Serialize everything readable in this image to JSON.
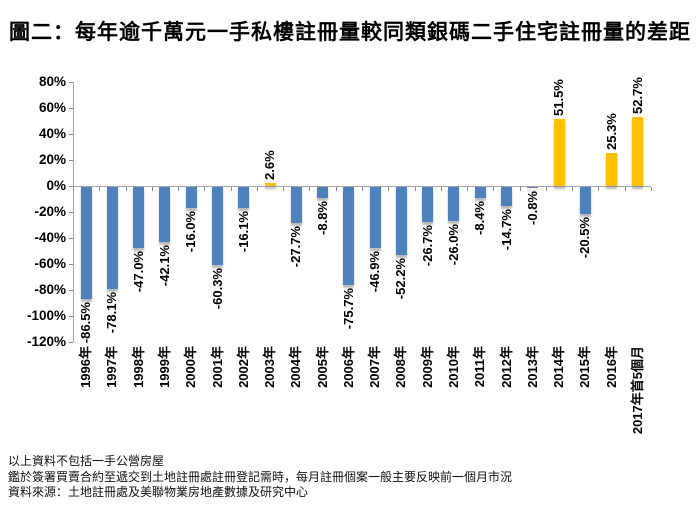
{
  "title": "圖二：每年逾千萬元一手私樓註冊量較同類銀碼二手住宅註冊量的差距",
  "chart_data": {
    "type": "bar",
    "title": "圖二：每年逾千萬元一手私樓註冊量較同類銀碼二手住宅註冊量的差距",
    "categories": [
      "1996年",
      "1997年",
      "1998年",
      "1999年",
      "2000年",
      "2001年",
      "2002年",
      "2003年",
      "2004年",
      "2005年",
      "2006年",
      "2007年",
      "2008年",
      "2009年",
      "2010年",
      "2011年",
      "2012年",
      "2013年",
      "2014年",
      "2015年",
      "2016年",
      "2017年首5個月"
    ],
    "values": [
      -86.5,
      -78.1,
      -47.0,
      -42.1,
      -16.0,
      -60.3,
      -16.1,
      2.6,
      -27.7,
      -8.8,
      -75.7,
      -46.9,
      -52.2,
      -26.7,
      -26.0,
      -8.4,
      -14.7,
      -0.8,
      51.5,
      -20.5,
      25.3,
      52.7
    ],
    "data_labels": [
      "-86.5%",
      "-78.1%",
      "-47.0%",
      "-42.1%",
      "-16.0%",
      "-60.3%",
      "-16.1%",
      "2.6%",
      "-27.7%",
      "-8.8%",
      "-75.7%",
      "-46.9%",
      "-52.2%",
      "-26.7%",
      "-26.0%",
      "-8.4%",
      "-14.7%",
      "-0.8%",
      "51.5%",
      "-20.5%",
      "25.3%",
      "52.7%"
    ],
    "y_ticks": [
      "80%",
      "60%",
      "40%",
      "20%",
      "0%",
      "-20%",
      "-40%",
      "-60%",
      "-80%",
      "-100%",
      "-120%"
    ],
    "ylim": [
      -120,
      80
    ],
    "ytick_step": 20,
    "grid": false,
    "legend": false,
    "xlabel": "",
    "ylabel": "",
    "bar_color_negative": "#4F81BD",
    "bar_color_positive": "#FFC000",
    "axis_color": "#A6A6A6",
    "tick_color": "#8C8C8C",
    "label_color": "#000000"
  },
  "footnotes": [
    "以上資料不包括一手公營房屋",
    "鑑於簽署買賣合約至遞交到土地註冊處註冊登記需時，每月註冊個案一般主要反映前一個月市況",
    "資料來源：土地註冊處及美聯物業房地產數據及研究中心"
  ]
}
